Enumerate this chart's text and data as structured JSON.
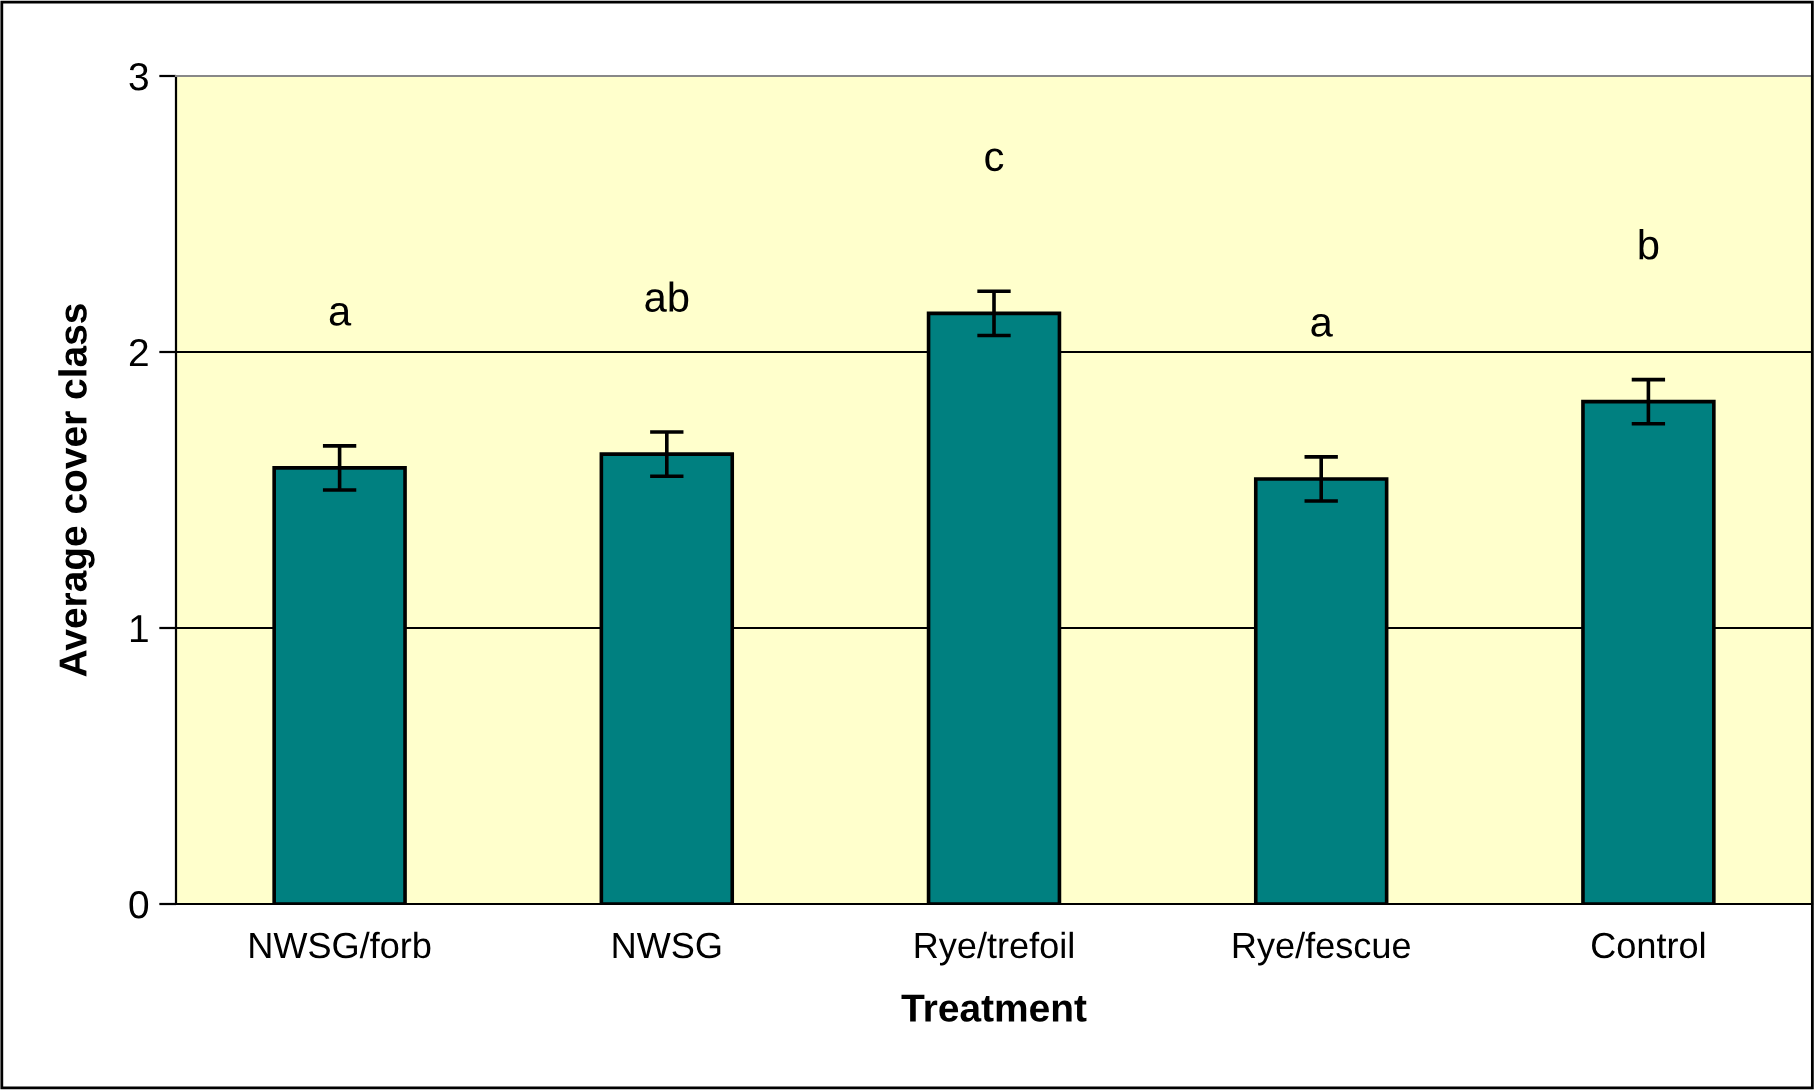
{
  "chart_data": {
    "type": "bar",
    "xlabel": "Treatment",
    "ylabel": "Average cover class",
    "categories": [
      "NWSG/forb",
      "NWSG",
      "Rye/trefoil",
      "Rye/fescue",
      "Control"
    ],
    "series": [
      {
        "color": "#008080",
        "values": [
          1.58,
          1.63,
          2.14,
          1.54,
          1.82
        ],
        "errors": [
          0.08,
          0.08,
          0.08,
          0.08,
          0.08
        ]
      }
    ],
    "ylim": [
      0,
      3
    ],
    "yticks": [
      0,
      1,
      2,
      3
    ],
    "grid": "y",
    "annotations": [
      "a",
      "ab",
      "c",
      "a",
      "b"
    ]
  }
}
